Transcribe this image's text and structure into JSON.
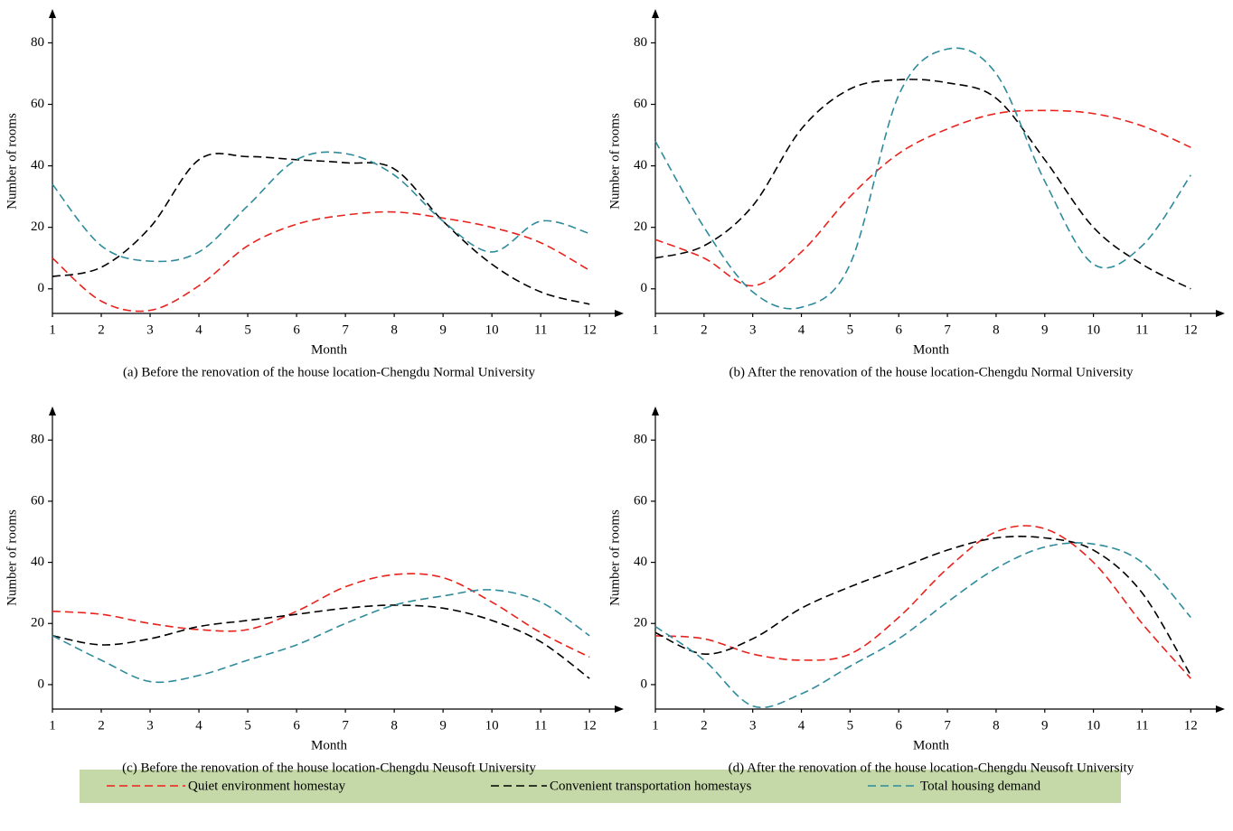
{
  "chart_data": [
    {
      "type": "line",
      "caption": "(a) Before the renovation of the house location-Chengdu Normal University",
      "xlabel": "Month",
      "ylabel": "Number of rooms",
      "x": [
        1,
        2,
        3,
        4,
        5,
        6,
        7,
        8,
        9,
        10,
        11,
        12
      ],
      "xlim": [
        1,
        12.7
      ],
      "xticks": [
        1,
        2,
        3,
        4,
        5,
        6,
        7,
        8,
        9,
        10,
        11,
        12
      ],
      "ylim": [
        -8,
        91
      ],
      "yticks": [
        0,
        20,
        40,
        60,
        80
      ],
      "series": [
        {
          "name": "Quiet environment homestay",
          "color": "#e8221c",
          "values": [
            10,
            -4,
            -7,
            1,
            14,
            21,
            24,
            25,
            23,
            20,
            15,
            6
          ]
        },
        {
          "name": "Convenient transportation homestays",
          "color": "#000000",
          "values": [
            4,
            7,
            20,
            42,
            43,
            42,
            41,
            39,
            22,
            8,
            -1,
            -5
          ]
        },
        {
          "name": "Total housing demand",
          "color": "#2e8b9c",
          "values": [
            34,
            14,
            9,
            12,
            27,
            42,
            44,
            37,
            22,
            12,
            22,
            18
          ]
        }
      ]
    },
    {
      "type": "line",
      "caption": "(b) After the renovation of the house location-Chengdu Normal University",
      "xlabel": "Month",
      "ylabel": "Number of rooms",
      "x": [
        1,
        2,
        3,
        4,
        5,
        6,
        7,
        8,
        9,
        10,
        11,
        12
      ],
      "xlim": [
        1,
        12.7
      ],
      "xticks": [
        1,
        2,
        3,
        4,
        5,
        6,
        7,
        8,
        9,
        10,
        11,
        12
      ],
      "ylim": [
        -8,
        91
      ],
      "yticks": [
        0,
        20,
        40,
        60,
        80
      ],
      "series": [
        {
          "color": "#e8221c",
          "values": [
            16,
            10,
            1,
            12,
            30,
            44,
            52,
            57,
            58,
            57,
            53,
            46
          ]
        },
        {
          "color": "#000000",
          "values": [
            10,
            14,
            27,
            52,
            65,
            68,
            67,
            62,
            42,
            20,
            8,
            0
          ]
        },
        {
          "color": "#2e8b9c",
          "values": [
            48,
            20,
            -1,
            -6,
            8,
            63,
            78,
            70,
            35,
            8,
            14,
            37
          ]
        }
      ]
    },
    {
      "type": "line",
      "caption": "(c) Before the renovation of the house location-Chengdu Neusoft University",
      "xlabel": "Month",
      "ylabel": "Number of rooms",
      "x": [
        1,
        2,
        3,
        4,
        5,
        6,
        7,
        8,
        9,
        10,
        11,
        12
      ],
      "xlim": [
        1,
        12.7
      ],
      "xticks": [
        1,
        2,
        3,
        4,
        5,
        6,
        7,
        8,
        9,
        10,
        11,
        12
      ],
      "ylim": [
        -8,
        91
      ],
      "yticks": [
        0,
        20,
        40,
        60,
        80
      ],
      "series": [
        {
          "color": "#e8221c",
          "values": [
            24,
            23,
            20,
            18,
            18,
            24,
            32,
            36,
            35,
            27,
            17,
            9
          ]
        },
        {
          "color": "#000000",
          "values": [
            16,
            13,
            15,
            19,
            21,
            23,
            25,
            26,
            25,
            21,
            14,
            2
          ]
        },
        {
          "color": "#2e8b9c",
          "values": [
            16,
            8,
            1,
            3,
            8,
            13,
            20,
            26,
            29,
            31,
            27,
            16
          ]
        }
      ]
    },
    {
      "type": "line",
      "caption": "(d) After the renovation of the house location-Chengdu Neusoft University",
      "xlabel": "Month",
      "ylabel": "Number of rooms",
      "x": [
        1,
        2,
        3,
        4,
        5,
        6,
        7,
        8,
        9,
        10,
        11,
        12
      ],
      "xlim": [
        1,
        12.7
      ],
      "xticks": [
        1,
        2,
        3,
        4,
        5,
        6,
        7,
        8,
        9,
        10,
        11,
        12
      ],
      "ylim": [
        -8,
        91
      ],
      "yticks": [
        0,
        20,
        40,
        60,
        80
      ],
      "series": [
        {
          "color": "#e8221c",
          "values": [
            16,
            15,
            10,
            8,
            10,
            22,
            38,
            50,
            51,
            40,
            20,
            2
          ]
        },
        {
          "color": "#000000",
          "values": [
            17,
            10,
            15,
            25,
            32,
            38,
            44,
            48,
            48,
            44,
            30,
            3
          ]
        },
        {
          "color": "#2e8b9c",
          "values": [
            19,
            8,
            -7,
            -3,
            6,
            15,
            27,
            38,
            45,
            46,
            40,
            22
          ]
        }
      ]
    }
  ]
}
